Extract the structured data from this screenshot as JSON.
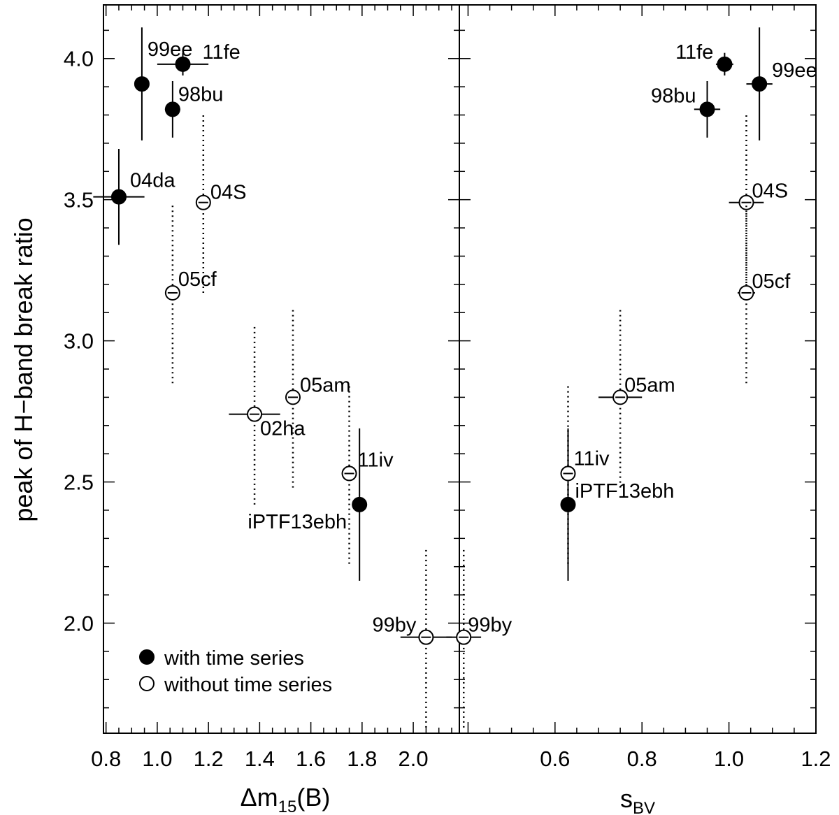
{
  "chart_data": [
    {
      "type": "scatter",
      "panel": "left",
      "xlabel": "Δm15(B)",
      "ylabel": "peak of H−band break ratio",
      "xlim": [
        0.79,
        2.18
      ],
      "ylim": [
        1.61,
        4.19
      ],
      "xticks": [
        "0.8",
        "1.0",
        "1.2",
        "1.4",
        "1.6",
        "1.8",
        "2.0"
      ],
      "yticks": [
        "2.0",
        "2.5",
        "3.0",
        "3.5",
        "4.0"
      ],
      "legend": {
        "position": "bottom-left",
        "entries": [
          {
            "label": "with time series",
            "marker": "filled"
          },
          {
            "label": "without time series",
            "marker": "open"
          }
        ]
      },
      "series": [
        {
          "name": "with time series",
          "marker": "filled",
          "points": [
            {
              "label": "99ee",
              "x": 0.94,
              "y": 3.91,
              "xerr": 0.0,
              "yerr": 0.2
            },
            {
              "label": "11fe",
              "x": 1.1,
              "y": 3.98,
              "xerr": 0.1,
              "yerr": 0.04
            },
            {
              "label": "98bu",
              "x": 1.06,
              "y": 3.82,
              "xerr": 0.03,
              "yerr": 0.1
            },
            {
              "label": "04da",
              "x": 0.85,
              "y": 3.51,
              "xerr": 0.1,
              "yerr": 0.17
            },
            {
              "label": "iPTF13ebh",
              "x": 1.79,
              "y": 2.42,
              "xerr": 0.02,
              "yerr": 0.27
            }
          ]
        },
        {
          "name": "without time series",
          "marker": "open",
          "points": [
            {
              "label": "04S",
              "x": 1.18,
              "y": 3.49,
              "xerr": 0.0,
              "yerr": 0.32
            },
            {
              "label": "05cf",
              "x": 1.06,
              "y": 3.17,
              "xerr": 0.0,
              "yerr": 0.32
            },
            {
              "label": "02ha",
              "x": 1.38,
              "y": 2.74,
              "xerr": 0.1,
              "yerr": 0.32
            },
            {
              "label": "05am",
              "x": 1.53,
              "y": 2.8,
              "xerr": 0.0,
              "yerr": 0.32
            },
            {
              "label": "11iv",
              "x": 1.75,
              "y": 2.53,
              "xerr": 0.0,
              "yerr": 0.32
            },
            {
              "label": "99by",
              "x": 2.05,
              "y": 1.95,
              "xerr": 0.1,
              "yerr": 0.32
            }
          ]
        }
      ]
    },
    {
      "type": "scatter",
      "panel": "right",
      "xlabel": "sBV",
      "xlim": [
        0.38,
        1.2
      ],
      "ylim": [
        1.61,
        4.19
      ],
      "xticks": [
        "0.6",
        "0.8",
        "1.0",
        "1.2"
      ],
      "series": [
        {
          "name": "with time series",
          "marker": "filled",
          "points": [
            {
              "label": "11fe",
              "x": 0.99,
              "y": 3.98,
              "xerr": 0.02,
              "yerr": 0.04
            },
            {
              "label": "99ee",
              "x": 1.07,
              "y": 3.91,
              "xerr": 0.03,
              "yerr": 0.2
            },
            {
              "label": "98bu",
              "x": 0.95,
              "y": 3.82,
              "xerr": 0.03,
              "yerr": 0.1
            },
            {
              "label": "iPTF13ebh",
              "x": 0.63,
              "y": 2.42,
              "xerr": 0.01,
              "yerr": 0.27
            }
          ]
        },
        {
          "name": "without time series",
          "marker": "open",
          "points": [
            {
              "label": "04S",
              "x": 1.04,
              "y": 3.49,
              "xerr": 0.04,
              "yerr": 0.32
            },
            {
              "label": "05cf",
              "x": 1.04,
              "y": 3.17,
              "xerr": 0.02,
              "yerr": 0.32
            },
            {
              "label": "05am",
              "x": 0.75,
              "y": 2.8,
              "xerr": 0.05,
              "yerr": 0.32
            },
            {
              "label": "11iv",
              "x": 0.63,
              "y": 2.53,
              "xerr": 0.0,
              "yerr": 0.32
            },
            {
              "label": "99by",
              "x": 0.39,
              "y": 1.95,
              "xerr": 0.04,
              "yerr": 0.32
            }
          ]
        }
      ]
    }
  ]
}
